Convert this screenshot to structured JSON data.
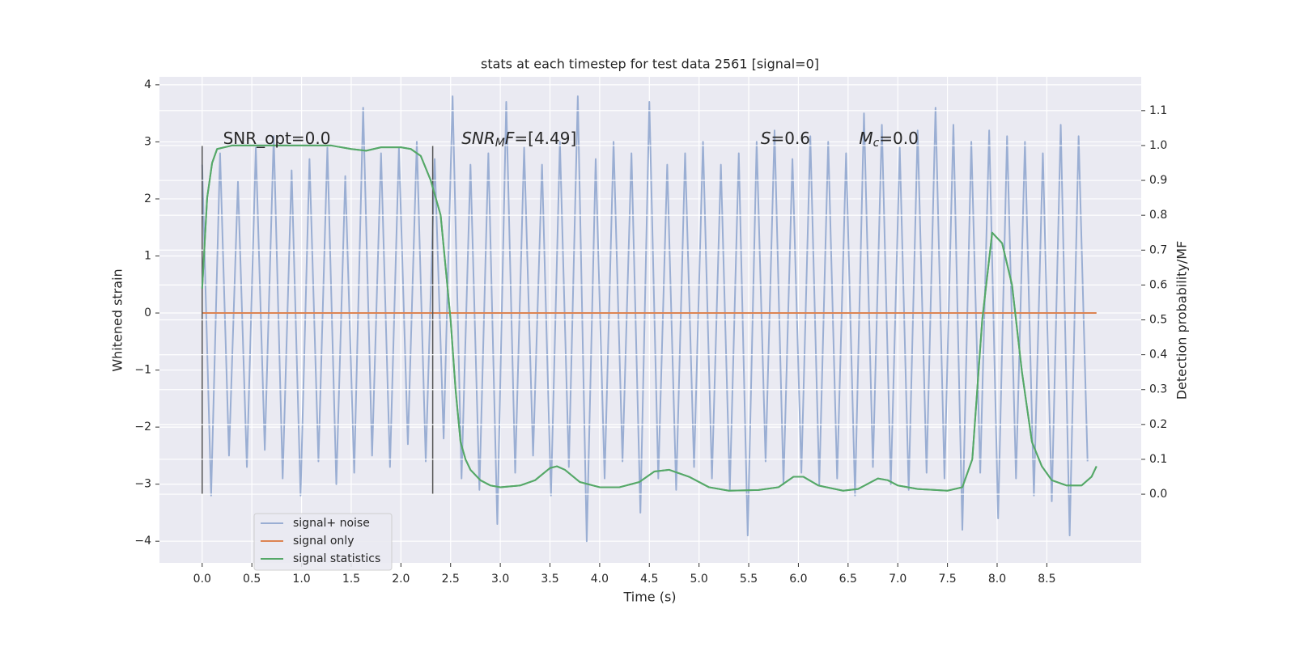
{
  "chart_data": {
    "type": "line",
    "title": "stats at each timestep for test data 2561 [signal=0]",
    "xlabel": "Time (s)",
    "ylabel": "Whitened strain",
    "y2label": "Detection probability/MF",
    "xlim": [
      -0.43,
      9.45
    ],
    "ylim": [
      -4.38,
      4.14
    ],
    "y2lim": [
      -0.197,
      1.197
    ],
    "xticks": [
      {
        "value": 0,
        "label": "0.0"
      },
      {
        "value": 0.5,
        "label": "0.5"
      },
      {
        "value": 1,
        "label": "1.0"
      },
      {
        "value": 1.5,
        "label": "1.5"
      },
      {
        "value": 2,
        "label": "2.0"
      },
      {
        "value": 2.5,
        "label": "2.5"
      },
      {
        "value": 3,
        "label": "3.0"
      },
      {
        "value": 3.5,
        "label": "3.5"
      },
      {
        "value": 4,
        "label": "4.0"
      },
      {
        "value": 4.5,
        "label": "4.5"
      },
      {
        "value": 5,
        "label": "5.0"
      },
      {
        "value": 5.5,
        "label": "5.5"
      },
      {
        "value": 6,
        "label": "6.0"
      },
      {
        "value": 6.5,
        "label": "6.5"
      },
      {
        "value": 7,
        "label": "7.0"
      },
      {
        "value": 7.5,
        "label": "7.5"
      },
      {
        "value": 8,
        "label": "8.0"
      },
      {
        "value": 8.5,
        "label": "8.5"
      }
    ],
    "yticks": [
      {
        "value": -4,
        "label": "−4"
      },
      {
        "value": -3,
        "label": "−3"
      },
      {
        "value": -2,
        "label": "−2"
      },
      {
        "value": -1,
        "label": "−1"
      },
      0,
      1,
      2,
      3,
      4
    ],
    "y2ticks": [
      {
        "value": 0,
        "label": "0.0"
      },
      {
        "value": 0.1,
        "label": "0.1"
      },
      {
        "value": 0.2,
        "label": "0.2"
      },
      {
        "value": 0.3,
        "label": "0.3"
      },
      {
        "value": 0.4,
        "label": "0.4"
      },
      {
        "value": 0.5,
        "label": "0.5"
      },
      {
        "value": 0.6,
        "label": "0.6"
      },
      {
        "value": 0.7,
        "label": "0.7"
      },
      {
        "value": 0.8,
        "label": "0.8"
      },
      {
        "value": 0.9,
        "label": "0.9"
      },
      {
        "value": 1.0,
        "label": "1.0"
      },
      {
        "value": 1.1,
        "label": "1.1"
      }
    ],
    "grid": true,
    "legend": "lower left",
    "series": [
      {
        "name": "signal+ noise",
        "color": "#9aaed3",
        "x": [
          0,
          0.09,
          0.18,
          0.27,
          0.36,
          0.45,
          0.54,
          0.63,
          0.72,
          0.81,
          0.9,
          0.99,
          1.08,
          1.17,
          1.26,
          1.35,
          1.44,
          1.53,
          1.62,
          1.71,
          1.8,
          1.89,
          1.98,
          2.07,
          2.16,
          2.25,
          2.34,
          2.43,
          2.52,
          2.61,
          2.7,
          2.79,
          2.88,
          2.97,
          3.06,
          3.15,
          3.24,
          3.33,
          3.42,
          3.51,
          3.6,
          3.69,
          3.78,
          3.87,
          3.96,
          4.05,
          4.14,
          4.23,
          4.32,
          4.41,
          4.5,
          4.59,
          4.68,
          4.77,
          4.86,
          4.95,
          5.04,
          5.13,
          5.22,
          5.31,
          5.4,
          5.49,
          5.58,
          5.67,
          5.76,
          5.85,
          5.94,
          6.03,
          6.12,
          6.21,
          6.3,
          6.39,
          6.48,
          6.57,
          6.66,
          6.75,
          6.84,
          6.93,
          7.02,
          7.11,
          7.2,
          7.29,
          7.38,
          7.47,
          7.56,
          7.65,
          7.74,
          7.83,
          7.92,
          8.01,
          8.1,
          8.19,
          8.28,
          8.37,
          8.46,
          8.55,
          8.64,
          8.73,
          8.82,
          8.91
        ],
        "values": [
          2.6,
          -3.2,
          2.8,
          -2.5,
          2.3,
          -2.7,
          2.9,
          -2.4,
          3.1,
          -2.9,
          2.5,
          -3.2,
          2.7,
          -2.6,
          2.9,
          -3.0,
          2.4,
          -2.8,
          3.6,
          -2.5,
          2.8,
          -2.7,
          2.9,
          -2.3,
          3.0,
          -2.6,
          2.7,
          -2.2,
          3.8,
          -2.9,
          2.6,
          -3.1,
          2.8,
          -3.7,
          3.7,
          -2.8,
          2.9,
          -2.5,
          2.6,
          -3.2,
          3.0,
          -2.7,
          3.8,
          -4.0,
          2.7,
          -2.9,
          3.0,
          -2.6,
          2.8,
          -3.5,
          3.7,
          -2.9,
          2.6,
          -3.1,
          2.8,
          -2.7,
          3.0,
          -2.9,
          2.6,
          -3.1,
          2.8,
          -3.9,
          3.0,
          -2.6,
          3.2,
          -3.0,
          2.7,
          -2.8,
          3.1,
          -3.0,
          3.0,
          -2.9,
          2.8,
          -3.2,
          3.5,
          -2.7,
          3.3,
          -3.0,
          2.9,
          -3.1,
          3.2,
          -2.8,
          3.6,
          -2.9,
          3.3,
          -3.8,
          3.0,
          -2.8,
          3.2,
          -3.6,
          3.1,
          -2.9,
          3.0,
          -3.2,
          2.8,
          -3.3,
          3.3,
          -3.9,
          3.1,
          -2.6
        ]
      },
      {
        "name": "signal only",
        "color": "#dd8452",
        "x": [
          0,
          9.0
        ],
        "values": [
          0,
          0
        ]
      },
      {
        "name": "signal statistics",
        "color": "#55a868",
        "axis": "y2",
        "x": [
          0,
          0.05,
          0.1,
          0.15,
          0.3,
          1.0,
          1.3,
          1.5,
          1.65,
          1.8,
          2.0,
          2.1,
          2.2,
          2.3,
          2.4,
          2.5,
          2.55,
          2.6,
          2.65,
          2.7,
          2.8,
          2.9,
          3.0,
          3.2,
          3.35,
          3.5,
          3.57,
          3.65,
          3.8,
          4.0,
          4.2,
          4.4,
          4.55,
          4.7,
          4.9,
          5.1,
          5.3,
          5.6,
          5.8,
          5.95,
          6.05,
          6.2,
          6.45,
          6.6,
          6.7,
          6.8,
          6.9,
          7.0,
          7.2,
          7.5,
          7.65,
          7.75,
          7.85,
          7.95,
          8.05,
          8.15,
          8.25,
          8.35,
          8.45,
          8.55,
          8.7,
          8.85,
          8.95,
          9.0
        ],
        "values": [
          0.59,
          0.85,
          0.95,
          0.99,
          1.0,
          1.0,
          1.0,
          0.99,
          0.985,
          0.995,
          0.995,
          0.99,
          0.97,
          0.9,
          0.8,
          0.5,
          0.3,
          0.15,
          0.1,
          0.07,
          0.04,
          0.025,
          0.02,
          0.025,
          0.04,
          0.075,
          0.08,
          0.07,
          0.035,
          0.02,
          0.02,
          0.035,
          0.065,
          0.07,
          0.05,
          0.02,
          0.01,
          0.012,
          0.02,
          0.05,
          0.05,
          0.025,
          0.01,
          0.015,
          0.03,
          0.045,
          0.04,
          0.025,
          0.015,
          0.01,
          0.02,
          0.1,
          0.5,
          0.75,
          0.72,
          0.6,
          0.35,
          0.15,
          0.08,
          0.04,
          0.025,
          0.025,
          0.05,
          0.08
        ]
      }
    ],
    "vlines": {
      "x": [
        0,
        2.32
      ],
      "ymin": -3.17,
      "ymax": 2.93,
      "color": "#555555"
    },
    "annotations": [
      {
        "x": 0.21,
        "y": 3.05,
        "parts": [
          {
            "t": "SNR_opt=0.0"
          }
        ]
      },
      {
        "x": 2.61,
        "y": 3.05,
        "parts": [
          {
            "t": "SNR",
            "italic": true
          },
          {
            "t": "M",
            "italic": true,
            "sub": true
          },
          {
            "t": "F",
            "italic": true
          },
          {
            "t": "=[4.49]"
          }
        ]
      },
      {
        "x": 5.62,
        "y": 3.05,
        "parts": [
          {
            "t": "S",
            "italic": true
          },
          {
            "t": "=0.6"
          }
        ]
      },
      {
        "x": 6.61,
        "y": 3.05,
        "parts": [
          {
            "t": "M",
            "italic": true
          },
          {
            "t": "c",
            "italic": true,
            "sub": true
          },
          {
            "t": "=0.0"
          }
        ]
      }
    ]
  }
}
